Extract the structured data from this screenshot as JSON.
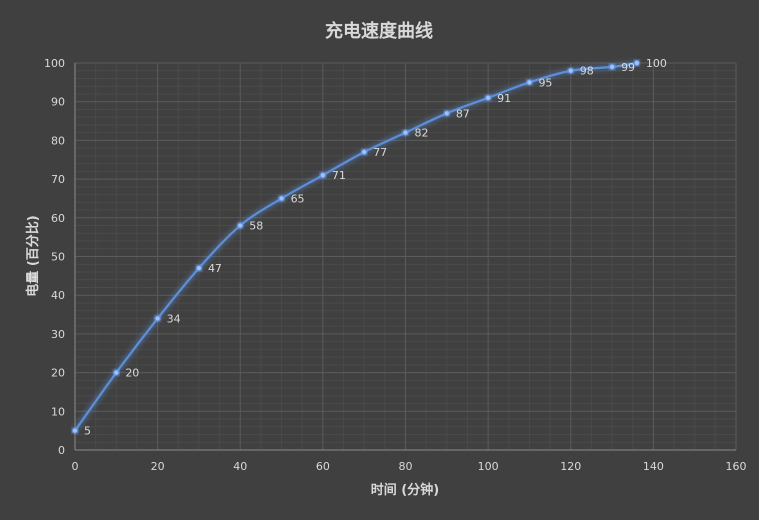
{
  "chart_data": {
    "type": "line",
    "title": "充电速度曲线",
    "xlabel": "时间 (分钟)",
    "ylabel": "电量 (百分比)",
    "xlim": [
      0,
      160
    ],
    "ylim": [
      0,
      100
    ],
    "x_ticks": [
      0,
      20,
      40,
      60,
      80,
      100,
      120,
      140,
      160
    ],
    "y_ticks": [
      0,
      10,
      20,
      30,
      40,
      50,
      60,
      70,
      80,
      90,
      100
    ],
    "grid": true,
    "legend": "none",
    "series": [
      {
        "x": [
          0,
          10,
          20,
          30,
          40,
          50,
          60,
          70,
          80,
          90,
          100,
          110,
          120,
          130,
          136
        ],
        "values": [
          5,
          20,
          34,
          47,
          58,
          65,
          71,
          77,
          82,
          87,
          91,
          95,
          98,
          99,
          100
        ],
        "labels": [
          "5",
          "20",
          "34",
          "47",
          "58",
          "65",
          "71",
          "77",
          "82",
          "87",
          "91",
          "95",
          "98",
          "99",
          "100"
        ],
        "color": "#5b8fd8"
      }
    ],
    "colors": {
      "background": "#404040",
      "text": "#d9d9d9",
      "grid": "#5b5b5b",
      "line": "#5b8fd8"
    }
  }
}
